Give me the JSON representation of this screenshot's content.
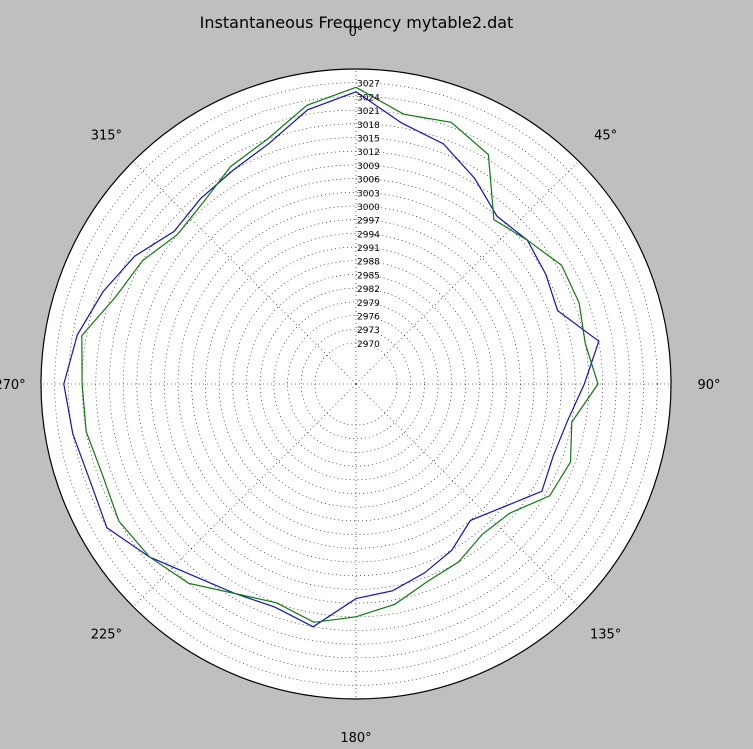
{
  "chart_data": {
    "type": "polar_line",
    "title": "Instantaneous Frequency  mytable2.dat",
    "theta_direction": "clockwise",
    "theta_zero": "top",
    "theta_tick_labels": [
      "0°",
      "45°",
      "90°",
      "135°",
      "180°",
      "225°",
      "270°",
      "315°"
    ],
    "r_range": [
      2961,
      3030
    ],
    "r_tick_labels": [
      "2970",
      "2973",
      "2976",
      "2979",
      "2982",
      "2985",
      "2988",
      "2991",
      "2994",
      "2997",
      "3000",
      "3003",
      "3006",
      "3009",
      "3012",
      "3015",
      "3018",
      "3021",
      "3024",
      "3027"
    ],
    "grid": true,
    "series": [
      {
        "color": "#1010c8",
        "theta_deg": [
          0,
          10,
          20,
          30,
          40,
          50,
          60,
          70,
          80,
          90,
          100,
          110,
          120,
          130,
          140,
          150,
          160,
          170,
          180,
          190,
          200,
          210,
          220,
          230,
          240,
          250,
          260,
          270,
          280,
          290,
          300,
          310,
          320,
          330,
          340,
          350
        ],
        "r": [
          3025,
          3019,
          3017,
          3013,
          3009,
          3010,
          3009,
          3008,
          3015,
          3011,
          3008,
          3007,
          3008,
          3003,
          3000,
          3003,
          3005,
          3007,
          3008,
          3015,
          3013,
          3014,
          3016,
          3020,
          3024,
          3023,
          3024,
          3025,
          3023,
          3020,
          3017,
          3013,
          3014,
          3015,
          3017,
          3022
        ]
      },
      {
        "color": "#0d7a0d",
        "theta_deg": [
          0,
          10,
          20,
          30,
          40,
          50,
          60,
          70,
          80,
          90,
          100,
          110,
          120,
          130,
          140,
          150,
          160,
          170,
          180,
          190,
          200,
          210,
          220,
          230,
          240,
          250,
          260,
          270,
          280,
          290,
          300,
          310,
          320,
          330,
          340,
          350
        ],
        "r": [
          3026,
          3021,
          3022,
          3019,
          3008,
          3010,
          3013,
          3013,
          3012,
          3014,
          3009,
          3011,
          3010,
          3005,
          3004,
          3006,
          3007,
          3010,
          3012,
          3014,
          3012,
          3014,
          3018,
          3020,
          3021,
          3020,
          3021,
          3021,
          3022,
          3017,
          3015,
          3012,
          3013,
          3016,
          3018,
          3023
        ]
      }
    ]
  }
}
